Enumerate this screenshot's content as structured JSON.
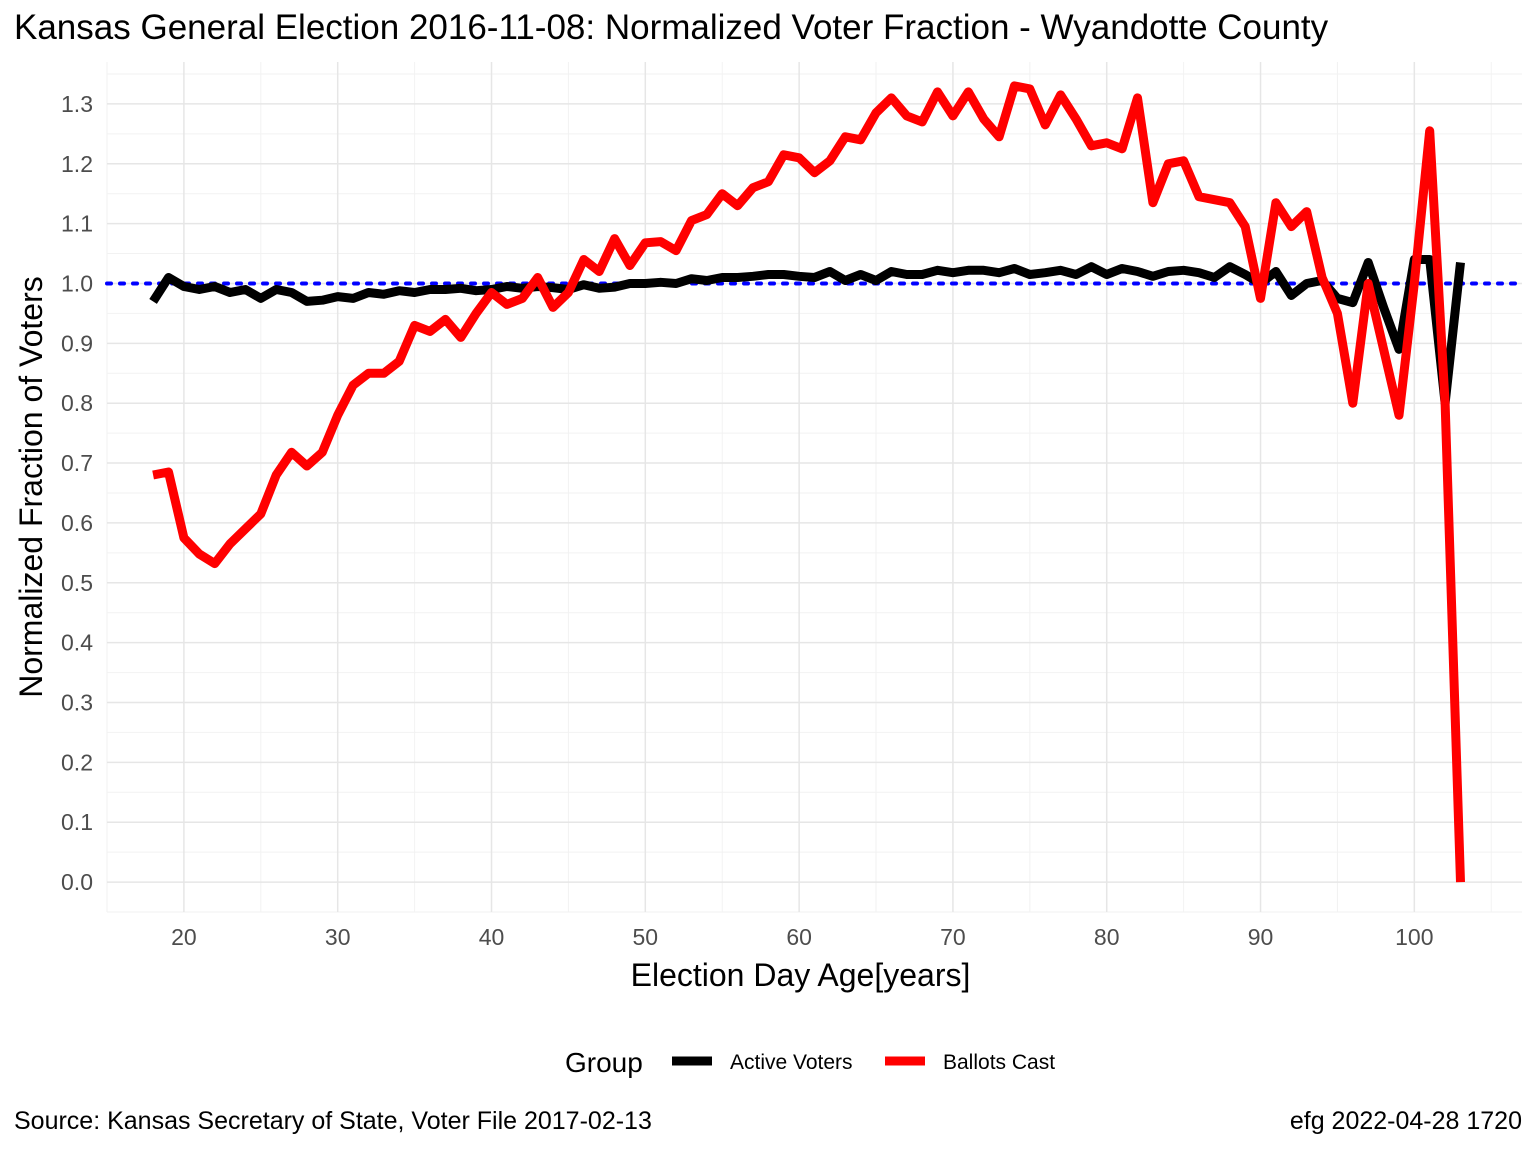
{
  "chart_data": {
    "type": "line",
    "title": "Kansas General Election 2016-11-08:  Normalized Voter Fraction - Wyandotte County",
    "xlabel": "Election Day Age[years]",
    "ylabel": "Normalized Fraction of Voters",
    "xlim": [
      15,
      107
    ],
    "ylim": [
      -0.05,
      1.37
    ],
    "x_ticks": [
      "20",
      "30",
      "40",
      "50",
      "60",
      "70",
      "80",
      "90",
      "100"
    ],
    "y_ticks": [
      "0.0",
      "0.1",
      "0.2",
      "0.3",
      "0.4",
      "0.5",
      "0.6",
      "0.7",
      "0.8",
      "0.9",
      "1.0",
      "1.1",
      "1.2",
      "1.3"
    ],
    "reference_line": {
      "y": 1.0,
      "color": "#0000ff",
      "style": "dotted"
    },
    "legend": {
      "title": "Group",
      "position": "bottom"
    },
    "series": [
      {
        "name": "Active Voters",
        "color": "#000000",
        "x": [
          18,
          19,
          20,
          21,
          22,
          23,
          24,
          25,
          26,
          27,
          28,
          29,
          30,
          31,
          32,
          33,
          34,
          35,
          36,
          37,
          38,
          39,
          40,
          41,
          42,
          43,
          44,
          45,
          46,
          47,
          48,
          49,
          50,
          51,
          52,
          53,
          54,
          55,
          56,
          57,
          58,
          59,
          60,
          61,
          62,
          63,
          64,
          65,
          66,
          67,
          68,
          69,
          70,
          71,
          72,
          73,
          74,
          75,
          76,
          77,
          78,
          79,
          80,
          81,
          82,
          83,
          84,
          85,
          86,
          87,
          88,
          89,
          90,
          91,
          92,
          93,
          94,
          95,
          96,
          97,
          98,
          99,
          100,
          101,
          102,
          103
        ],
        "values": [
          0.97,
          1.01,
          0.995,
          0.99,
          0.995,
          0.985,
          0.99,
          0.975,
          0.99,
          0.985,
          0.97,
          0.972,
          0.978,
          0.975,
          0.985,
          0.982,
          0.988,
          0.985,
          0.99,
          0.99,
          0.992,
          0.988,
          0.99,
          0.995,
          0.992,
          0.995,
          0.993,
          0.99,
          0.998,
          0.992,
          0.994,
          1.0,
          1.0,
          1.002,
          1.0,
          1.008,
          1.005,
          1.01,
          1.01,
          1.012,
          1.015,
          1.015,
          1.012,
          1.01,
          1.02,
          1.005,
          1.015,
          1.005,
          1.02,
          1.015,
          1.015,
          1.022,
          1.018,
          1.022,
          1.022,
          1.018,
          1.025,
          1.015,
          1.018,
          1.022,
          1.015,
          1.028,
          1.015,
          1.025,
          1.02,
          1.012,
          1.02,
          1.022,
          1.018,
          1.01,
          1.028,
          1.015,
          1.0,
          1.02,
          0.98,
          1.0,
          1.005,
          0.975,
          0.968,
          1.035,
          0.96,
          0.89,
          1.04,
          1.04,
          0.8,
          1.035
        ]
      },
      {
        "name": "Ballots Cast",
        "color": "#ff0000",
        "x": [
          18,
          19,
          20,
          21,
          22,
          23,
          24,
          25,
          26,
          27,
          28,
          29,
          30,
          31,
          32,
          33,
          34,
          35,
          36,
          37,
          38,
          39,
          40,
          41,
          42,
          43,
          44,
          45,
          46,
          47,
          48,
          49,
          50,
          51,
          52,
          53,
          54,
          55,
          56,
          57,
          58,
          59,
          60,
          61,
          62,
          63,
          64,
          65,
          66,
          67,
          68,
          69,
          70,
          71,
          72,
          73,
          74,
          75,
          76,
          77,
          78,
          79,
          80,
          81,
          82,
          83,
          84,
          85,
          86,
          87,
          88,
          89,
          90,
          91,
          92,
          93,
          94,
          95,
          96,
          97,
          98,
          99,
          100,
          101,
          102,
          103
        ],
        "values": [
          0.68,
          0.685,
          0.575,
          0.548,
          0.532,
          0.565,
          0.59,
          0.615,
          0.68,
          0.718,
          0.695,
          0.718,
          0.78,
          0.83,
          0.85,
          0.85,
          0.87,
          0.93,
          0.92,
          0.94,
          0.91,
          0.95,
          0.985,
          0.965,
          0.975,
          1.01,
          0.96,
          0.985,
          1.04,
          1.02,
          1.075,
          1.03,
          1.068,
          1.07,
          1.055,
          1.105,
          1.115,
          1.15,
          1.13,
          1.16,
          1.17,
          1.215,
          1.21,
          1.185,
          1.205,
          1.245,
          1.24,
          1.285,
          1.31,
          1.28,
          1.27,
          1.32,
          1.28,
          1.32,
          1.275,
          1.245,
          1.33,
          1.325,
          1.265,
          1.315,
          1.275,
          1.23,
          1.235,
          1.225,
          1.31,
          1.135,
          1.2,
          1.205,
          1.145,
          1.14,
          1.135,
          1.095,
          0.975,
          1.135,
          1.095,
          1.12,
          1.01,
          0.95,
          0.8,
          1.0,
          0.89,
          0.78,
          1.0,
          1.255,
          0.8,
          0.0
        ]
      }
    ]
  },
  "captions": {
    "source": "Source:  Kansas Secretary of State, Voter File  2017-02-13",
    "credit": "efg 2022-04-28 1720"
  }
}
